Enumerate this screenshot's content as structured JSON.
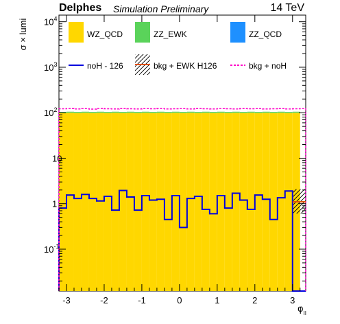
{
  "header": {
    "experiment": "Delphes",
    "status": "Simulation Preliminary",
    "energy": "14 TeV"
  },
  "chart_data": {
    "type": "bar",
    "yscale": "log",
    "ylabel": "σ × lumi",
    "xlabel_main": "φ",
    "xlabel_sub": "ll",
    "xlim": [
      -3.2,
      3.35
    ],
    "ylim": [
      0.012,
      14000
    ],
    "x_ticks": [
      -3,
      -2,
      -1,
      0,
      1,
      2,
      3
    ],
    "y_ticks": [
      {
        "value": 0.1,
        "base": "10",
        "exp": "-1"
      },
      {
        "value": 1,
        "base": "1",
        "exp": ""
      },
      {
        "value": 10,
        "base": "10",
        "exp": ""
      },
      {
        "value": 100,
        "base": "10",
        "exp": "2"
      },
      {
        "value": 1000,
        "base": "10",
        "exp": "3"
      },
      {
        "value": 10000,
        "base": "10",
        "exp": "4"
      }
    ],
    "bin_edges": [
      -3.2,
      -3.0,
      -2.8,
      -2.6,
      -2.4,
      -2.2,
      -2.0,
      -1.8,
      -1.6,
      -1.4,
      -1.2,
      -1.0,
      -0.8,
      -0.6,
      -0.4,
      -0.2,
      0.0,
      0.2,
      0.4,
      0.6,
      0.8,
      1.0,
      1.2,
      1.4,
      1.6,
      1.8,
      2.0,
      2.2,
      2.4,
      2.6,
      2.8,
      3.0,
      3.2,
      3.35
    ],
    "legend": [
      {
        "label": "WZ_QCD",
        "kind": "fill",
        "color": "#ffd700"
      },
      {
        "label": "ZZ_EWK",
        "kind": "fill",
        "color": "#5ad35a"
      },
      {
        "label": "ZZ_QCD",
        "kind": "fill",
        "color": "#1e90ff"
      },
      {
        "label": "noH - 126",
        "kind": "line",
        "color": "#0000dd"
      },
      {
        "label": "bkg + EWK H126",
        "kind": "hatch-line",
        "color": "#e05000"
      },
      {
        "label": "bkg + noH",
        "kind": "dashed",
        "color": "#ff00c8"
      }
    ],
    "series": [
      {
        "name": "WZ_QCD",
        "color": "#ffd700",
        "values": [
          98,
          99,
          98,
          99,
          98,
          99,
          98,
          99,
          98,
          99,
          98,
          99,
          98,
          99,
          98,
          99,
          98,
          99,
          98,
          99,
          98,
          99,
          98,
          99,
          98,
          99,
          98,
          99,
          98,
          99,
          98,
          99,
          0.012
        ]
      },
      {
        "name": "bkg + noH",
        "color": "#ff00c8",
        "values": [
          122,
          124,
          121,
          123,
          120,
          125,
          122,
          121,
          124,
          122,
          121,
          123,
          122,
          124,
          121,
          122,
          123,
          121,
          124,
          122,
          121,
          123,
          122,
          121,
          124,
          122,
          123,
          121,
          122,
          124,
          121,
          122,
          123
        ]
      },
      {
        "name": "noH - 126",
        "color": "#0000dd",
        "values": [
          0.8,
          1.55,
          1.3,
          1.6,
          1.3,
          1.15,
          1.45,
          0.72,
          1.95,
          1.4,
          0.72,
          1.5,
          1.2,
          1.25,
          0.45,
          1.5,
          0.3,
          1.3,
          1.45,
          0.75,
          0.6,
          1.5,
          0.8,
          1.7,
          1.2,
          0.75,
          1.55,
          1.25,
          0.45,
          1.35,
          1.9,
          0.012,
          0.012
        ]
      },
      {
        "name": "bkg + EWK H126",
        "color": "#e05000",
        "values": [
          null,
          null,
          null,
          null,
          null,
          null,
          null,
          null,
          null,
          null,
          null,
          null,
          null,
          null,
          null,
          null,
          null,
          null,
          null,
          null,
          null,
          null,
          null,
          null,
          null,
          null,
          null,
          null,
          null,
          null,
          null,
          1.1,
          1.1
        ]
      }
    ]
  }
}
